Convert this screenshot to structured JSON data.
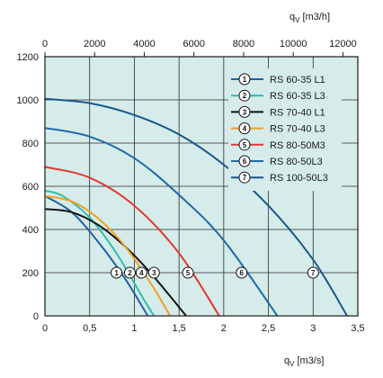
{
  "chart_data": {
    "type": "line",
    "plot_background": "#d6ecea",
    "grid": true,
    "legend_position": "top-right",
    "x_bottom": {
      "label": "q",
      "subscript": "V",
      "unit": "[m3/s]",
      "range": [
        0,
        3.5
      ],
      "ticks": [
        "0",
        "0,5",
        "1",
        "1,5",
        "2",
        "2,5",
        "3",
        "3,5"
      ]
    },
    "x_top": {
      "label": "q",
      "subscript": "V",
      "unit": "[m3/h]",
      "range": [
        0,
        12600
      ],
      "ticks": [
        "0",
        "2000",
        "4000",
        "6000",
        "8000",
        "10000",
        "12000"
      ]
    },
    "y": {
      "range": [
        0,
        1200
      ],
      "ticks": [
        "0",
        "200",
        "400",
        "600",
        "800",
        "1000",
        "1200"
      ]
    },
    "series": [
      {
        "id": "1",
        "name": "RS 60-35 L1",
        "color": "#1f5fa8",
        "x": [
          0,
          0.3,
          0.6,
          0.9,
          1.15
        ],
        "y": [
          555,
          480,
          340,
          170,
          0
        ]
      },
      {
        "id": "2",
        "name": "RS 60-35 L3",
        "color": "#2fbcb0",
        "x": [
          0,
          0.2,
          0.5,
          0.8,
          1.1,
          1.22
        ],
        "y": [
          580,
          555,
          455,
          290,
          80,
          0
        ]
      },
      {
        "id": "3",
        "name": "RS 70-40 L1",
        "color": "#111111",
        "x": [
          0,
          0.3,
          0.6,
          0.9,
          1.2,
          1.58
        ],
        "y": [
          495,
          480,
          420,
          320,
          190,
          0
        ]
      },
      {
        "id": "4",
        "name": "RS 70-40 L3",
        "color": "#f0a024",
        "x": [
          0,
          0.3,
          0.6,
          0.9,
          1.2,
          1.4
        ],
        "y": [
          555,
          530,
          450,
          320,
          140,
          0
        ]
      },
      {
        "id": "5",
        "name": "RS 80-50M3",
        "color": "#e0382e",
        "x": [
          0,
          0.5,
          1.0,
          1.5,
          1.95
        ],
        "y": [
          690,
          640,
          510,
          290,
          0
        ]
      },
      {
        "id": "6",
        "name": "RS 80-50L3",
        "color": "#1f6aa8",
        "x": [
          0,
          0.5,
          1.0,
          1.5,
          2.0,
          2.6
        ],
        "y": [
          870,
          830,
          730,
          560,
          350,
          0
        ]
      },
      {
        "id": "7",
        "name": "RS 100-50L3",
        "color": "#17578f",
        "x": [
          0,
          0.5,
          1.0,
          1.5,
          2.0,
          2.5,
          3.0,
          3.38
        ],
        "y": [
          1005,
          985,
          930,
          840,
          700,
          510,
          260,
          0
        ]
      }
    ],
    "markers": [
      {
        "id": "1",
        "x": 0.8,
        "y": 200
      },
      {
        "id": "2",
        "x": 0.95,
        "y": 200
      },
      {
        "id": "4",
        "x": 1.08,
        "y": 200
      },
      {
        "id": "3",
        "x": 1.22,
        "y": 200
      },
      {
        "id": "5",
        "x": 1.6,
        "y": 200
      },
      {
        "id": "6",
        "x": 2.2,
        "y": 200
      },
      {
        "id": "7",
        "x": 3.0,
        "y": 200
      }
    ]
  }
}
